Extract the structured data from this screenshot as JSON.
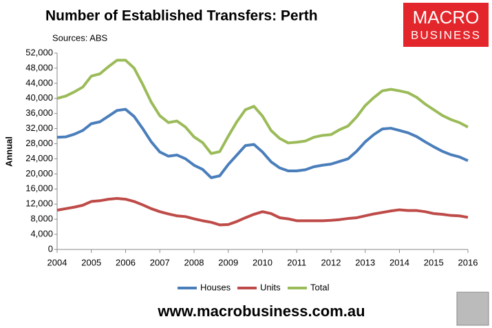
{
  "chart_data": {
    "type": "line",
    "title": "Number of Established Transfers: Perth",
    "subtitle": "Sources: ABS",
    "logo": {
      "line1": "MACRO",
      "line2": "BUSINESS"
    },
    "footer": "www.macrobusiness.com.au",
    "y_label": "Annual",
    "x": [
      2004,
      2004.25,
      2004.5,
      2004.75,
      2005,
      2005.25,
      2005.5,
      2005.75,
      2006,
      2006.25,
      2006.5,
      2006.75,
      2007,
      2007.25,
      2007.5,
      2007.75,
      2008,
      2008.25,
      2008.5,
      2008.75,
      2009,
      2009.25,
      2009.5,
      2009.75,
      2010,
      2010.25,
      2010.5,
      2010.75,
      2011,
      2011.25,
      2011.5,
      2011.75,
      2012,
      2012.25,
      2012.5,
      2012.75,
      2013,
      2013.25,
      2013.5,
      2013.75,
      2014,
      2014.25,
      2014.5,
      2014.75,
      2015,
      2015.25,
      2015.5,
      2015.75,
      2016
    ],
    "series": [
      {
        "name": "Houses",
        "color": "#4a7ebb",
        "values": [
          29700,
          29800,
          30500,
          31500,
          33300,
          33800,
          35300,
          36800,
          37100,
          35200,
          32000,
          28500,
          25800,
          24700,
          25000,
          24000,
          22300,
          21200,
          19000,
          19500,
          22500,
          25000,
          27500,
          27800,
          25800,
          23200,
          21600,
          20800,
          20800,
          21100,
          21900,
          22300,
          22600,
          23300,
          24000,
          26000,
          28500,
          30400,
          31900,
          32100,
          31500,
          30900,
          29900,
          28500,
          27200,
          26000,
          25100,
          24500,
          23500
        ]
      },
      {
        "name": "Units",
        "color": "#be4b48",
        "values": [
          10400,
          10800,
          11200,
          11700,
          12700,
          12900,
          13300,
          13500,
          13300,
          12700,
          11800,
          10800,
          10000,
          9400,
          8900,
          8700,
          8100,
          7600,
          7200,
          6500,
          6600,
          7400,
          8400,
          9300,
          10000,
          9500,
          8400,
          8100,
          7600,
          7600,
          7600,
          7600,
          7700,
          7900,
          8200,
          8400,
          8900,
          9400,
          9800,
          10200,
          10500,
          10300,
          10300,
          10000,
          9500,
          9300,
          9000,
          8900,
          8500
        ]
      },
      {
        "name": "Total",
        "color": "#9bbb59",
        "values": [
          40000,
          40600,
          41700,
          43000,
          45900,
          46500,
          48400,
          50100,
          50100,
          48000,
          43700,
          39000,
          35400,
          33600,
          34000,
          32400,
          29800,
          28300,
          25400,
          25900,
          30000,
          33800,
          37000,
          37900,
          35300,
          31500,
          29400,
          28200,
          28400,
          28700,
          29700,
          30200,
          30400,
          31700,
          32700,
          35100,
          38100,
          40200,
          42000,
          42400,
          42000,
          41500,
          40300,
          38500,
          37000,
          35500,
          34400,
          33600,
          32400
        ]
      }
    ],
    "xlim": [
      2004,
      2016
    ],
    "xticks": [
      2004,
      2005,
      2006,
      2007,
      2008,
      2009,
      2010,
      2011,
      2012,
      2013,
      2014,
      2015,
      2016
    ],
    "ylim": [
      0,
      52000
    ],
    "yticks": [
      0,
      {
        "value": 4000,
        "label": "4,000"
      },
      {
        "value": 8000,
        "label": "8,000"
      },
      {
        "value": 12000,
        "label": "12,000"
      },
      {
        "value": 16000,
        "label": "16,000"
      },
      {
        "value": 20000,
        "label": "20,000"
      },
      {
        "value": 24000,
        "label": "24,000"
      },
      {
        "value": 28000,
        "label": "28,000"
      },
      {
        "value": 32000,
        "label": "32,000"
      },
      {
        "value": 36000,
        "label": "36,000"
      },
      {
        "value": 40000,
        "label": "40,000"
      },
      {
        "value": 44000,
        "label": "44,000"
      },
      {
        "value": 48000,
        "label": "48,000"
      },
      {
        "value": 52000,
        "label": "52,000"
      }
    ],
    "grid": false,
    "legend": "bottom"
  }
}
